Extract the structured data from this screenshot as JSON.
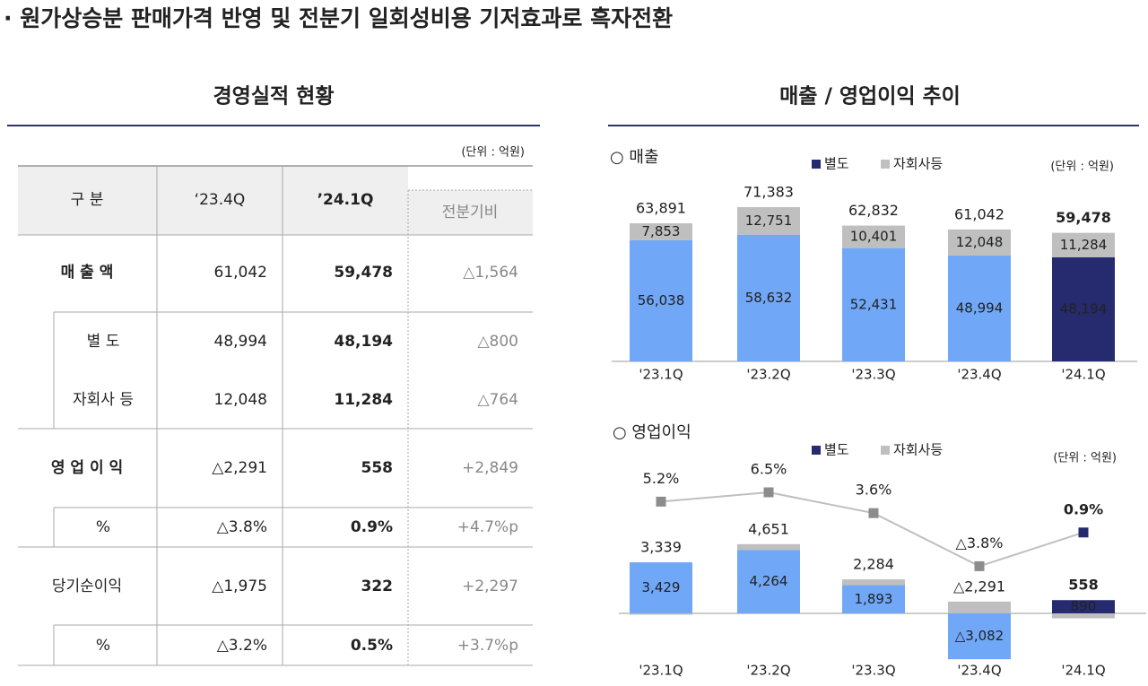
{
  "title": "· 원가상승분 판매가격 반영 및 전분기 일회성비용 기저효과로 흑자전환",
  "table": {
    "title": "경영실적 현황",
    "unit": "(단위 : 억원)",
    "header": [
      "구 분",
      "‘23.4Q",
      "’24.1Q",
      "전분기비"
    ],
    "rows": [
      [
        "매 출 액",
        "61,042",
        "59,478",
        "△1,564"
      ],
      [
        "별 도",
        "48,994",
        "48,194",
        "△800"
      ],
      [
        "자회사 등",
        "12,048",
        "11,284",
        "△764"
      ],
      [
        "영 업 이 익",
        "△2,291",
        "558",
        "+2,849"
      ],
      [
        "%",
        "△3.8%",
        "0.9%",
        "+4.7%p"
      ],
      [
        "당기순이익",
        "△1,975",
        "322",
        "+2,297"
      ],
      [
        "%",
        "△3.2%",
        "0.5%",
        "+3.7%p"
      ]
    ]
  },
  "charts_title": "매출 / 영업이익 추이",
  "chart_data": [
    {
      "type": "stacked_bar",
      "subtitle": "○ 매출",
      "unit": "(단위 : 억원)",
      "legend": "top",
      "categories": [
        "'23.1Q",
        "'23.2Q",
        "'23.3Q",
        "'23.4Q",
        "'24.1Q"
      ],
      "series": [
        {
          "name": "별도",
          "color": "#262a6e",
          "point_colors": [
            "#70a7f6",
            "#70a7f6",
            "#70a7f6",
            "#70a7f6",
            "#262a6e"
          ],
          "values": [
            56038,
            58632,
            52431,
            48994,
            48194
          ],
          "value_labels": [
            "56,038",
            "58,632",
            "52,431",
            "48,994",
            "48,194"
          ]
        },
        {
          "name": "자회사등",
          "color": "#bfbfbf",
          "values": [
            7853,
            12751,
            10401,
            12048,
            11284
          ],
          "value_labels": [
            "7,853",
            "12,751",
            "10,401",
            "12,048",
            "11,284"
          ]
        }
      ],
      "totals": {
        "values": [
          63891,
          71383,
          62832,
          61042,
          59478
        ],
        "value_labels": [
          "63,891",
          "71,383",
          "62,832",
          "61,042",
          "59,478"
        ]
      }
    },
    {
      "type": "bar_line",
      "subtitle": "○ 영업이익",
      "unit": "(단위 : 억원)",
      "legend": "top",
      "categories": [
        "'23.1Q",
        "'23.2Q",
        "'23.3Q",
        "'23.4Q",
        "'24.1Q"
      ],
      "series": [
        {
          "name": "별도",
          "color": "#262a6e",
          "point_colors": [
            "#70a7f6",
            "#70a7f6",
            "#70a7f6",
            "#70a7f6",
            "#262a6e"
          ],
          "values": [
            3429,
            4264,
            1893,
            -3082,
            890
          ],
          "value_labels": [
            "3,429",
            "4,264",
            "1,893",
            "△3,082",
            "890"
          ]
        },
        {
          "name": "자회사등",
          "color": "#bfbfbf",
          "values": [
            -90,
            387,
            391,
            791,
            -332
          ]
        }
      ],
      "totals": {
        "values": [
          3339,
          4651,
          2284,
          -2291,
          558
        ],
        "value_labels": [
          "3,339",
          "4,651",
          "2,284",
          "△2,291",
          "558"
        ]
      },
      "line": {
        "color": "#bfbfbf",
        "marker_color": "#8c8c8c",
        "values": [
          5.2,
          6.5,
          3.6,
          -3.8,
          0.9
        ],
        "value_labels": [
          "5.2%",
          "6.5%",
          "3.6%",
          "△3.8%",
          "0.9%"
        ]
      }
    }
  ]
}
